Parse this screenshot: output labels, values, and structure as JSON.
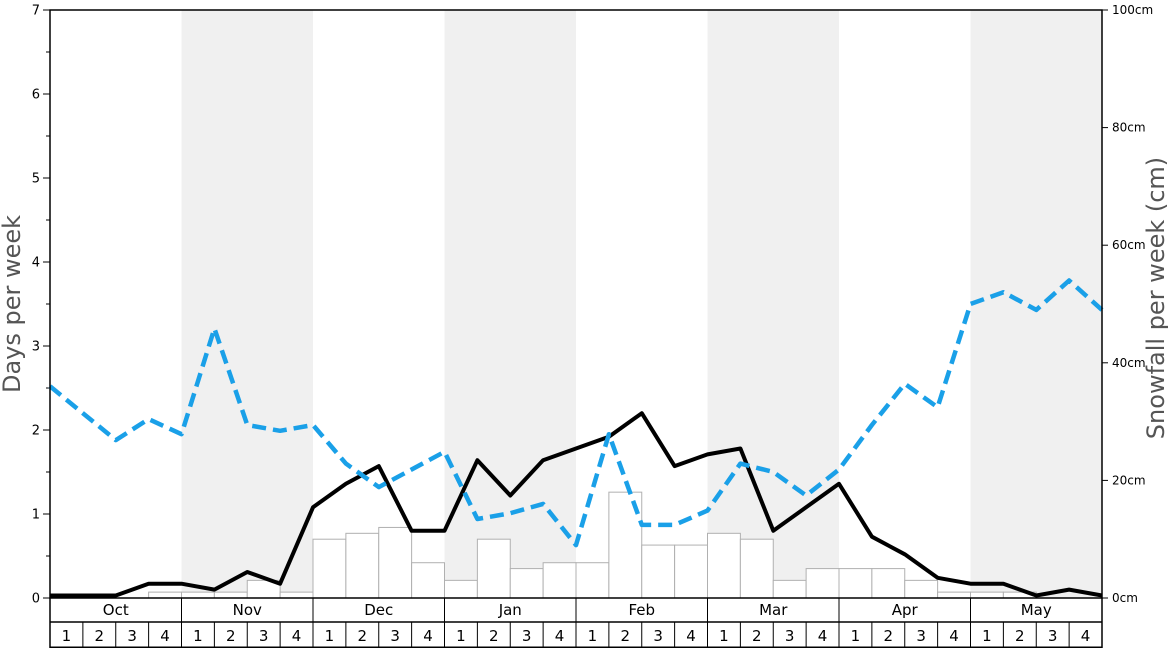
{
  "chart_data": {
    "type": "bar+line",
    "months": [
      "Oct",
      "Nov",
      "Dec",
      "Jan",
      "Feb",
      "Mar",
      "Apr",
      "May"
    ],
    "weeks": [
      "1",
      "2",
      "3",
      "4"
    ],
    "ylabel_left": "Days per week",
    "ylabel_right": "Snowfall per week (cm)",
    "ylim_left": [
      0,
      7
    ],
    "ylim_right": [
      0,
      100
    ],
    "left_ticks": [
      "0",
      "1",
      "2",
      "3",
      "4",
      "5",
      "6",
      "7"
    ],
    "right_ticks": [
      "0cm",
      "20cm",
      "40cm",
      "60cm",
      "80cm",
      "100cm"
    ],
    "shaded_months": [
      "Nov",
      "Jan",
      "Mar",
      "May"
    ],
    "colors": {
      "shade": "#f0f0f0",
      "bar_stroke": "#b0b0b0",
      "solid_line": "#000000",
      "dashed_line": "#1aa0e8"
    },
    "series": [
      {
        "kind": "bars",
        "axis": "right",
        "unit": "cm",
        "values": [
          0,
          0,
          0,
          1,
          1,
          1,
          3,
          1,
          10,
          11,
          12,
          6,
          3,
          10,
          5,
          6,
          6,
          18,
          9,
          9,
          11,
          10,
          3,
          5,
          5,
          5,
          3,
          1,
          1,
          1,
          0,
          0
        ]
      },
      {
        "kind": "line",
        "style": "solid",
        "axis": "left",
        "values": [
          0.03,
          0.03,
          0.03,
          0.17,
          0.17,
          0.1,
          0.31,
          0.17,
          1.08,
          1.36,
          1.57,
          0.8,
          0.8,
          1.64,
          1.22,
          1.64,
          1.78,
          1.92,
          2.2,
          1.57,
          1.71,
          1.78,
          0.8,
          1.08,
          1.36,
          0.73,
          0.52,
          0.24,
          0.17,
          0.17,
          0.03,
          0.1,
          0.03
        ]
      },
      {
        "kind": "line",
        "style": "dashed",
        "axis": "left",
        "values": [
          2.52,
          2.2,
          1.88,
          2.13,
          1.95,
          3.21,
          2.06,
          1.99,
          2.06,
          1.6,
          1.32,
          1.53,
          1.74,
          0.94,
          1.01,
          1.12,
          0.63,
          1.95,
          0.87,
          0.87,
          1.04,
          1.6,
          1.5,
          1.22,
          1.53,
          2.06,
          2.55,
          2.27,
          3.5,
          3.64,
          3.43,
          3.78,
          3.43
        ]
      }
    ]
  }
}
